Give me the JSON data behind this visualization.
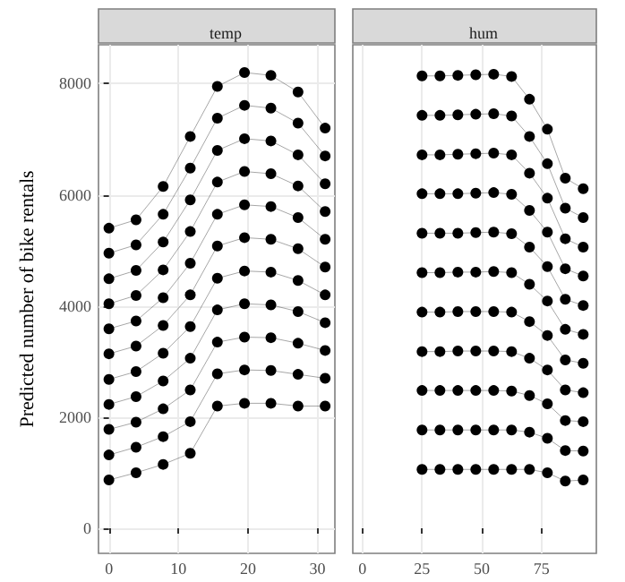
{
  "chart_data": [
    {
      "type": "line",
      "title": "temp",
      "ylabel": "Predicted number of bike rentals",
      "x": [
        0,
        3.9,
        7.8,
        11.7,
        15.6,
        19.5,
        23.3,
        27.2,
        31.1
      ],
      "xlim": [
        -1.5,
        32.5
      ],
      "xticks": [
        0,
        10,
        20,
        30
      ],
      "ylim": [
        -450,
        8700
      ],
      "yticks": [
        0,
        2000,
        4000,
        6000,
        8000
      ],
      "grid": true,
      "marker": "circle",
      "series": [
        {
          "color": "#000000",
          "values": [
            870,
            1000,
            1150,
            1350,
            2200,
            2250,
            2250,
            2200,
            2200
          ]
        },
        {
          "color": "#000000",
          "values": [
            1320,
            1460,
            1650,
            1920,
            2780,
            2850,
            2840,
            2770,
            2700
          ]
        },
        {
          "color": "#000000",
          "values": [
            1780,
            1910,
            2150,
            2490,
            3350,
            3440,
            3430,
            3330,
            3200
          ]
        },
        {
          "color": "#000000",
          "values": [
            2230,
            2370,
            2650,
            3060,
            3930,
            4040,
            4020,
            3900,
            3700
          ]
        },
        {
          "color": "#000000",
          "values": [
            2680,
            2820,
            3150,
            3630,
            4500,
            4630,
            4610,
            4460,
            4200
          ]
        },
        {
          "color": "#000000",
          "values": [
            3140,
            3280,
            3650,
            4200,
            5080,
            5230,
            5200,
            5030,
            4700
          ]
        },
        {
          "color": "#000000",
          "values": [
            3590,
            3730,
            4150,
            4770,
            5650,
            5820,
            5790,
            5590,
            5200
          ]
        },
        {
          "color": "#000000",
          "values": [
            4040,
            4190,
            4650,
            5340,
            6230,
            6420,
            6380,
            6160,
            5700
          ]
        },
        {
          "color": "#000000",
          "values": [
            4490,
            4640,
            5150,
            5910,
            6800,
            7010,
            6970,
            6720,
            6200
          ]
        },
        {
          "color": "#000000",
          "values": [
            4950,
            5100,
            5650,
            6480,
            7380,
            7610,
            7560,
            7290,
            6700
          ]
        },
        {
          "color": "#000000",
          "values": [
            5400,
            5550,
            6150,
            7050,
            7950,
            8200,
            8150,
            7850,
            7200
          ]
        }
      ]
    },
    {
      "type": "line",
      "title": "hum",
      "x": [
        25,
        32.5,
        40,
        47.5,
        55,
        62.5,
        70,
        77.5,
        85,
        92.5
      ],
      "xlim": [
        -4,
        98
      ],
      "xticks": [
        0,
        25,
        50,
        75
      ],
      "ylim": [
        -450,
        8700
      ],
      "tick_labels": "x",
      "grid": true,
      "marker": "circle",
      "series": [
        {
          "color": "#000000",
          "values": [
            1060,
            1060,
            1060,
            1060,
            1060,
            1060,
            1060,
            1000,
            850,
            870
          ]
        },
        {
          "color": "#000000",
          "values": [
            1770,
            1770,
            1770,
            1770,
            1770,
            1770,
            1730,
            1620,
            1400,
            1390
          ]
        },
        {
          "color": "#000000",
          "values": [
            2480,
            2480,
            2480,
            2480,
            2480,
            2470,
            2390,
            2240,
            1940,
            1920
          ]
        },
        {
          "color": "#000000",
          "values": [
            3180,
            3180,
            3190,
            3190,
            3190,
            3180,
            3060,
            2850,
            2490,
            2440
          ]
        },
        {
          "color": "#000000",
          "values": [
            3890,
            3890,
            3900,
            3900,
            3900,
            3890,
            3720,
            3470,
            3030,
            2970
          ]
        },
        {
          "color": "#000000",
          "values": [
            4600,
            4600,
            4610,
            4610,
            4620,
            4600,
            4390,
            4090,
            3580,
            3490
          ]
        },
        {
          "color": "#000000",
          "values": [
            5310,
            5310,
            5310,
            5320,
            5330,
            5300,
            5060,
            4710,
            4120,
            4010
          ]
        },
        {
          "color": "#000000",
          "values": [
            6020,
            6020,
            6020,
            6030,
            6040,
            6010,
            5720,
            5330,
            4670,
            4540
          ]
        },
        {
          "color": "#000000",
          "values": [
            6720,
            6720,
            6730,
            6740,
            6750,
            6720,
            6390,
            5940,
            5210,
            5060
          ]
        },
        {
          "color": "#000000",
          "values": [
            7430,
            7430,
            7440,
            7450,
            7460,
            7420,
            7050,
            6560,
            5760,
            5590
          ]
        },
        {
          "color": "#000000",
          "values": [
            8140,
            8140,
            8150,
            8160,
            8170,
            8130,
            7720,
            7180,
            6300,
            6110
          ]
        }
      ]
    }
  ]
}
